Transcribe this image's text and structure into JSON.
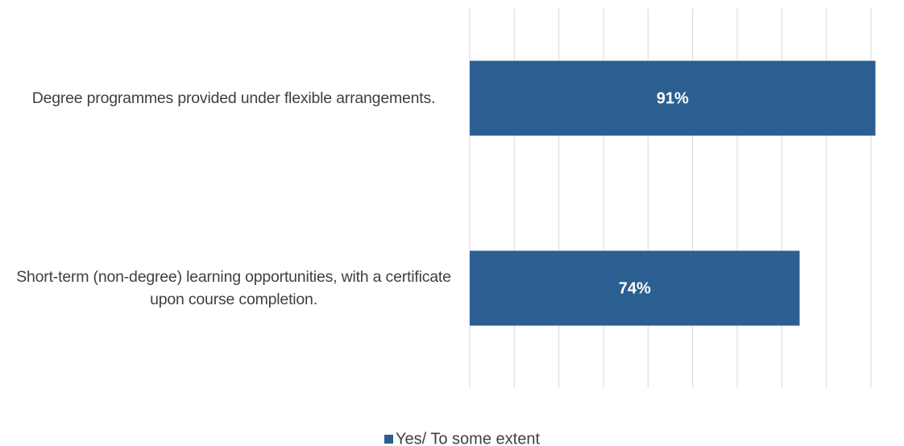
{
  "chart_data": {
    "type": "bar",
    "orientation": "horizontal",
    "categories": [
      "Degree programmes provided under flexible arrangements.",
      "Short-term (non-degree) learning opportunities, with a certificate upon course completion."
    ],
    "series": [
      {
        "name": "Yes/ To some extent",
        "color": "#2b5f91",
        "values": [
          91,
          74
        ],
        "value_labels": [
          "91%",
          "74%"
        ]
      }
    ],
    "xlim": [
      0,
      90
    ],
    "xticks": [
      0,
      10,
      20,
      30,
      40,
      50,
      60,
      70,
      80,
      90
    ],
    "grid": true,
    "legend": "bottom"
  }
}
